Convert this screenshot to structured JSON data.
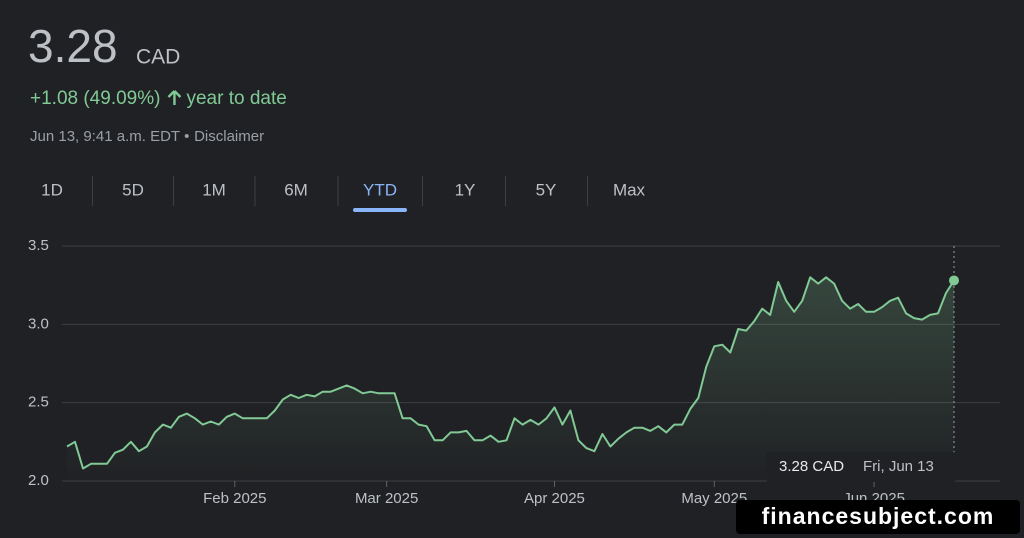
{
  "header": {
    "price": "3.28",
    "currency": "CAD",
    "change": "+1.08 (49.09%)",
    "change_period": "year to date",
    "timestamp": "Jun 13, 9:41 a.m. EDT",
    "separator": "•",
    "disclaimer": "Disclaimer"
  },
  "tabs": [
    "1D",
    "5D",
    "1M",
    "6M",
    "YTD",
    "1Y",
    "5Y",
    "Max"
  ],
  "selected_tab": 4,
  "chart_data": {
    "type": "line",
    "color": "#81c995",
    "values": [
      2.22,
      2.25,
      2.08,
      2.11,
      2.11,
      2.11,
      2.18,
      2.2,
      2.25,
      2.19,
      2.22,
      2.31,
      2.36,
      2.34,
      2.41,
      2.43,
      2.4,
      2.36,
      2.38,
      2.36,
      2.41,
      2.43,
      2.4,
      2.4,
      2.4,
      2.4,
      2.45,
      2.52,
      2.55,
      2.53,
      2.55,
      2.54,
      2.57,
      2.57,
      2.59,
      2.61,
      2.59,
      2.56,
      2.57,
      2.56,
      2.56,
      2.56,
      2.4,
      2.4,
      2.36,
      2.35,
      2.26,
      2.26,
      2.31,
      2.31,
      2.32,
      2.26,
      2.26,
      2.29,
      2.25,
      2.26,
      2.4,
      2.36,
      2.39,
      2.36,
      2.4,
      2.47,
      2.36,
      2.45,
      2.26,
      2.21,
      2.19,
      2.3,
      2.22,
      2.27,
      2.31,
      2.34,
      2.34,
      2.32,
      2.35,
      2.31,
      2.36,
      2.36,
      2.46,
      2.53,
      2.73,
      2.86,
      2.87,
      2.82,
      2.97,
      2.96,
      3.02,
      3.1,
      3.06,
      3.27,
      3.15,
      3.08,
      3.15,
      3.3,
      3.26,
      3.3,
      3.26,
      3.15,
      3.1,
      3.13,
      3.08,
      3.08,
      3.11,
      3.15,
      3.17,
      3.07,
      3.04,
      3.03,
      3.06,
      3.07,
      3.2,
      3.28
    ],
    "xlim": [
      0,
      111
    ],
    "xticks": [
      {
        "value": 21,
        "label": "Feb 2025"
      },
      {
        "value": 40,
        "label": "Mar 2025"
      },
      {
        "value": 61,
        "label": "Apr 2025"
      },
      {
        "value": 81,
        "label": "May 2025"
      },
      {
        "value": 101,
        "label": "Jun 2025"
      }
    ],
    "ylim": [
      2,
      3.5
    ],
    "yticks": [
      {
        "value": 2,
        "label": "2.0"
      },
      2.5,
      {
        "value": 3,
        "label": "3.0"
      },
      3.5
    ],
    "grid": true
  },
  "tooltip": {
    "price": "3.28 CAD",
    "date": "Fri, Jun 13"
  },
  "watermark": "financesubject.com"
}
